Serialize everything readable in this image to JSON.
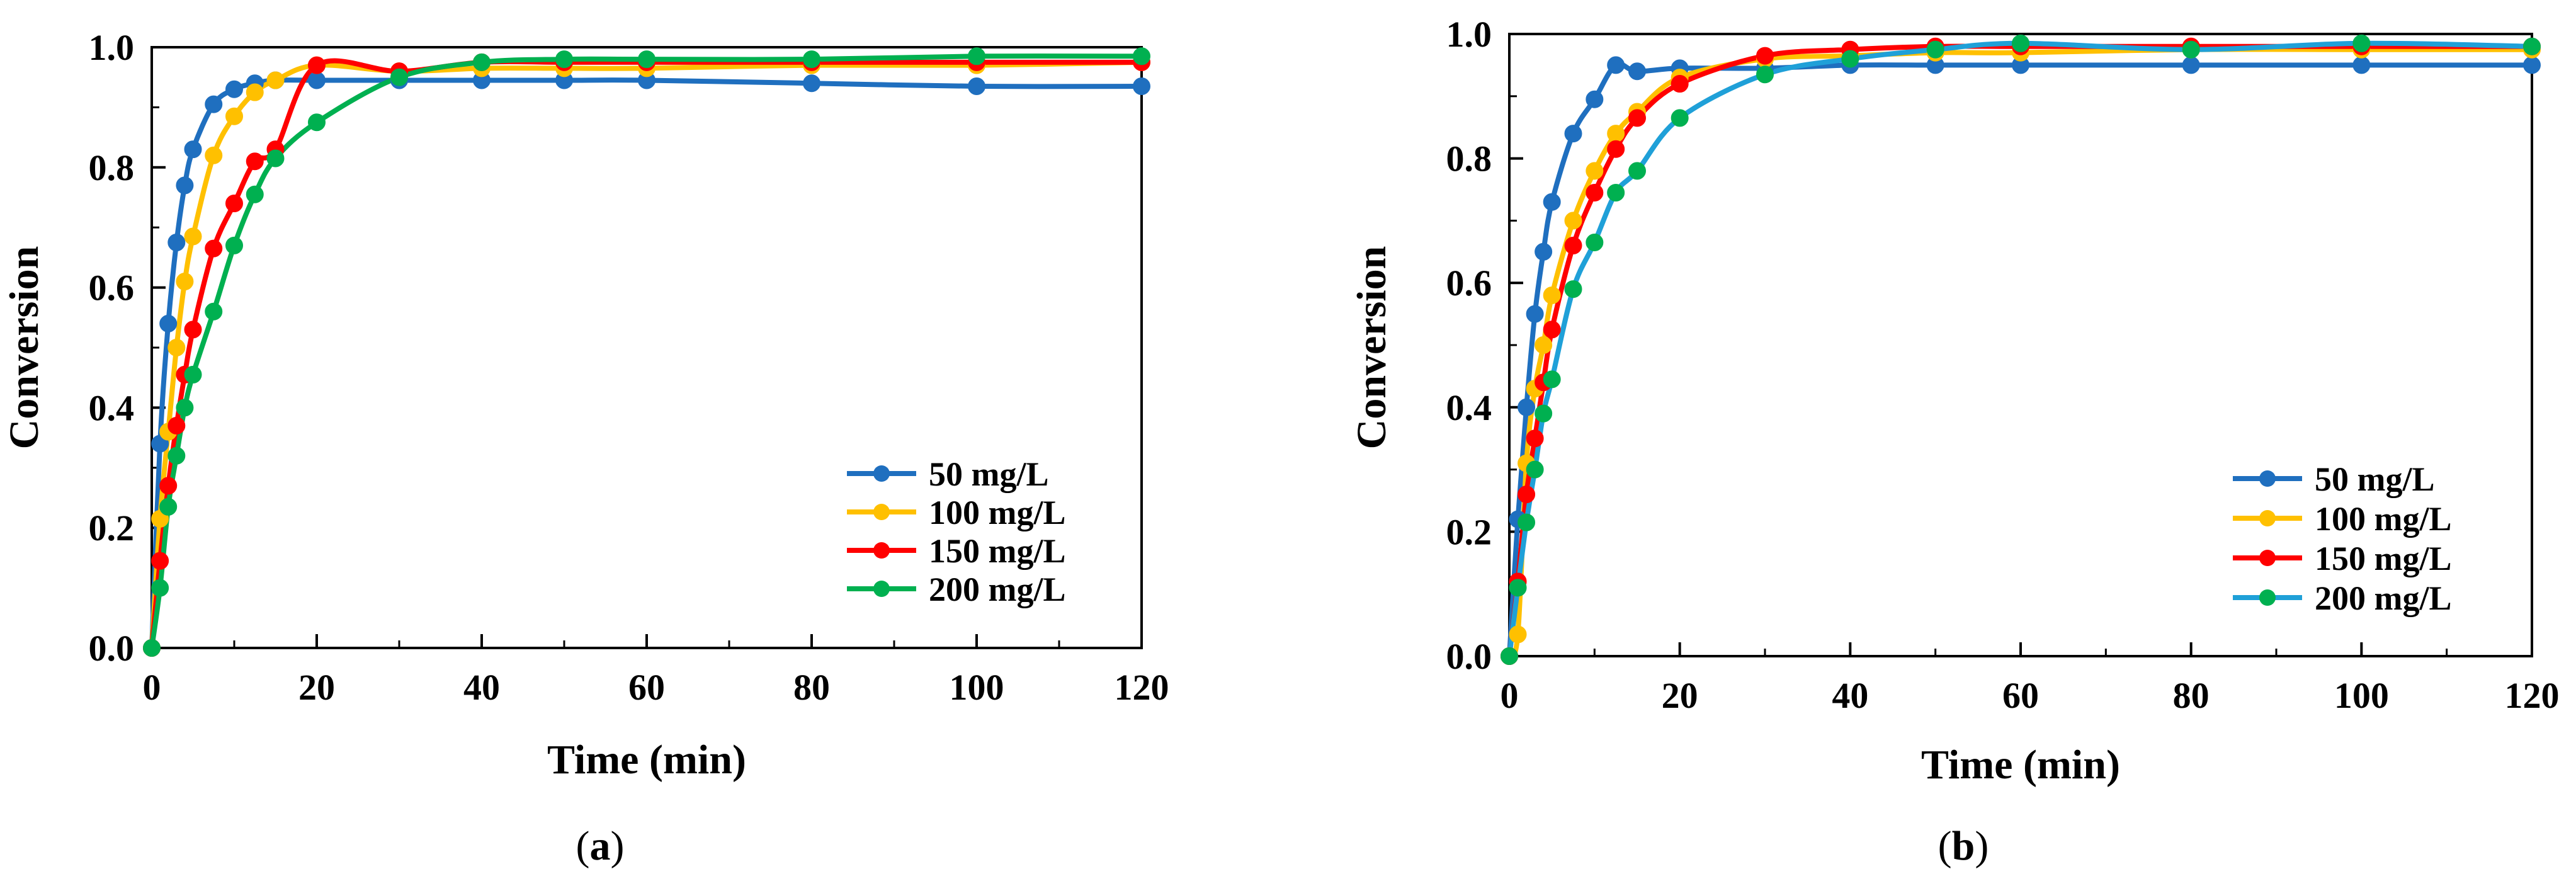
{
  "chart_data": [
    {
      "type": "line",
      "panel": "a",
      "caption_open": "(",
      "caption_letter": "a",
      "caption_close": ")",
      "title": "",
      "xlabel": "Time (min)",
      "ylabel": "Conversion",
      "xlim": [
        0,
        120
      ],
      "ylim": [
        0,
        1.0
      ],
      "xticks": [
        "0",
        "20",
        "40",
        "60",
        "80",
        "100",
        "120"
      ],
      "yticks": [
        "0.0",
        "0.2",
        "0.4",
        "0.6",
        "0.8",
        "1.0"
      ],
      "legend_position": "lower-right",
      "series": [
        {
          "name": "50 mg/L",
          "color": "#1f6fbf",
          "x": [
            0,
            1,
            2,
            3,
            4,
            5,
            7.5,
            10,
            12.5,
            15,
            20,
            30,
            40,
            50,
            60,
            80,
            100,
            120
          ],
          "y": [
            0,
            0.34,
            0.54,
            0.675,
            0.77,
            0.83,
            0.905,
            0.93,
            0.94,
            0.945,
            0.945,
            0.945,
            0.945,
            0.945,
            0.945,
            0.94,
            0.935,
            0.935
          ]
        },
        {
          "name": "100 mg/L",
          "color": "#ffc000",
          "x": [
            0,
            1,
            2,
            3,
            4,
            5,
            7.5,
            10,
            12.5,
            15,
            20,
            30,
            40,
            50,
            60,
            80,
            100,
            120
          ],
          "y": [
            0,
            0.215,
            0.36,
            0.5,
            0.61,
            0.685,
            0.82,
            0.885,
            0.925,
            0.945,
            0.97,
            0.96,
            0.965,
            0.965,
            0.965,
            0.97,
            0.97,
            0.975
          ]
        },
        {
          "name": "150 mg/L",
          "color": "#ff0000",
          "x": [
            0,
            1,
            2,
            3,
            4,
            5,
            7.5,
            10,
            12.5,
            15,
            20,
            30,
            40,
            50,
            60,
            80,
            100,
            120
          ],
          "y": [
            0,
            0.145,
            0.27,
            0.37,
            0.455,
            0.53,
            0.665,
            0.74,
            0.81,
            0.83,
            0.97,
            0.96,
            0.975,
            0.975,
            0.975,
            0.975,
            0.975,
            0.975
          ]
        },
        {
          "name": "200 mg/L",
          "color": "#00b050",
          "x": [
            0,
            1,
            2,
            3,
            4,
            5,
            7.5,
            10,
            12.5,
            15,
            20,
            30,
            40,
            50,
            60,
            80,
            100,
            120
          ],
          "y": [
            0,
            0.1,
            0.235,
            0.32,
            0.4,
            0.455,
            0.56,
            0.67,
            0.755,
            0.815,
            0.875,
            0.95,
            0.975,
            0.98,
            0.98,
            0.98,
            0.985,
            0.985
          ]
        }
      ]
    },
    {
      "type": "line",
      "panel": "b",
      "caption_open": "(",
      "caption_letter": "b",
      "caption_close": ")",
      "title": "",
      "xlabel": "Time (min)",
      "ylabel": "Conversion",
      "xlim": [
        0,
        120
      ],
      "ylim": [
        0,
        1.0
      ],
      "xticks": [
        "0",
        "20",
        "40",
        "60",
        "80",
        "100",
        "120"
      ],
      "yticks": [
        "0.0",
        "0.2",
        "0.4",
        "0.6",
        "0.8",
        "1.0"
      ],
      "legend_position": "lower-right",
      "series": [
        {
          "name": "50 mg/L",
          "color": "#1f6fbf",
          "x": [
            0,
            1,
            2,
            3,
            4,
            5,
            7.5,
            10,
            12.5,
            15,
            20,
            30,
            40,
            50,
            60,
            80,
            100,
            120
          ],
          "y": [
            0,
            0.22,
            0.4,
            0.55,
            0.65,
            0.73,
            0.84,
            0.895,
            0.95,
            0.94,
            0.945,
            0.945,
            0.95,
            0.95,
            0.95,
            0.95,
            0.95,
            0.95
          ]
        },
        {
          "name": "100 mg/L",
          "color": "#ffc000",
          "x": [
            0,
            1,
            2,
            3,
            4,
            5,
            7.5,
            10,
            12.5,
            15,
            20,
            30,
            40,
            50,
            60,
            80,
            100,
            120
          ],
          "y": [
            0,
            0.035,
            0.31,
            0.43,
            0.5,
            0.58,
            0.7,
            0.78,
            0.84,
            0.875,
            0.93,
            0.96,
            0.965,
            0.97,
            0.97,
            0.975,
            0.975,
            0.975
          ]
        },
        {
          "name": "150 mg/L",
          "color": "#ff0000",
          "x": [
            0,
            1,
            2,
            3,
            4,
            5,
            7.5,
            10,
            12.5,
            15,
            20,
            30,
            40,
            50,
            60,
            80,
            100,
            120
          ],
          "y": [
            0,
            0.12,
            0.26,
            0.35,
            0.44,
            0.525,
            0.66,
            0.745,
            0.815,
            0.865,
            0.92,
            0.965,
            0.975,
            0.98,
            0.98,
            0.98,
            0.98,
            0.98
          ]
        },
        {
          "name": "200 mg/L",
          "color": "#00b050",
          "line_color": "#1fa0d8",
          "x": [
            0,
            1,
            2,
            3,
            4,
            5,
            7.5,
            10,
            12.5,
            15,
            20,
            30,
            40,
            50,
            60,
            80,
            100,
            120
          ],
          "y": [
            0,
            0.11,
            0.215,
            0.3,
            0.39,
            0.445,
            0.59,
            0.665,
            0.745,
            0.78,
            0.865,
            0.935,
            0.96,
            0.975,
            0.985,
            0.975,
            0.985,
            0.98
          ]
        }
      ]
    }
  ]
}
